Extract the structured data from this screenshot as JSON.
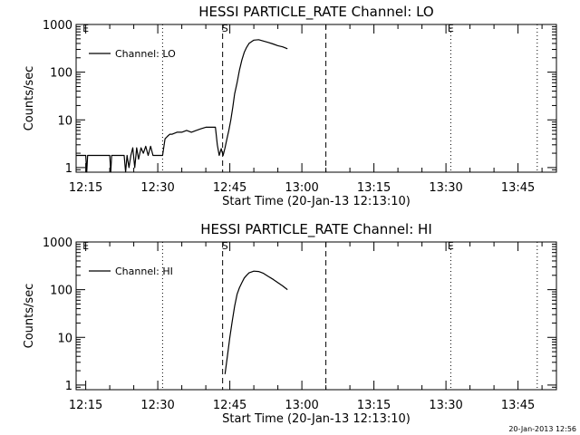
{
  "footer_timestamp": "20-Jan-2013 12:56",
  "chart_data": [
    {
      "type": "line",
      "title": "HESSI PARTICLE_RATE Channel: LO",
      "xlabel": "Start Time (20-Jan-13 12:13:10)",
      "ylabel": "Counts/sec",
      "yscale": "log",
      "xlim": [
        "12:13",
        "13:53"
      ],
      "ylim": [
        0.8,
        1000
      ],
      "xticks": [
        "12:15",
        "12:30",
        "12:45",
        "13:00",
        "13:15",
        "13:30",
        "13:45"
      ],
      "yticks": [
        "1",
        "10",
        "100",
        "1000"
      ],
      "legend": "top-left",
      "marker_labels": [
        {
          "text": "E",
          "x": "12:15"
        },
        {
          "text": "S",
          "x": "12:44"
        },
        {
          "text": "E",
          "x": "13:31"
        }
      ],
      "vlines": [
        {
          "x": "12:31",
          "style": "dotted"
        },
        {
          "x": "12:43.5",
          "style": "dashed"
        },
        {
          "x": "13:05",
          "style": "dashed"
        },
        {
          "x": "13:31",
          "style": "dotted"
        },
        {
          "x": "13:49",
          "style": "dotted"
        }
      ],
      "series": [
        {
          "name": "Channel: LO",
          "x": [
            "12:13",
            "12:15",
            "12:15.2",
            "12:15.4",
            "12:20",
            "12:20.2",
            "12:20.4",
            "12:22",
            "12:23",
            "12:23.3",
            "12:23.6",
            "12:24",
            "12:24.4",
            "12:24.8",
            "12:25.2",
            "12:25.6",
            "12:26",
            "12:26.5",
            "12:27",
            "12:27.5",
            "12:28",
            "12:28.5",
            "12:29",
            "12:29.5",
            "12:30",
            "12:30.5",
            "12:31",
            "12:31.5",
            "12:32",
            "12:32.5",
            "12:33",
            "12:34",
            "12:35",
            "12:36",
            "12:37",
            "12:38",
            "12:39",
            "12:40",
            "12:41",
            "12:42",
            "12:42.4",
            "12:42.8",
            "12:43.2",
            "12:43.6",
            "12:44",
            "12:44.4",
            "12:44.8",
            "12:45.2",
            "12:45.6",
            "12:46",
            "12:46.5",
            "12:47",
            "12:47.5",
            "12:48",
            "12:48.5",
            "12:49",
            "12:50",
            "12:51",
            "12:52",
            "12:53",
            "12:54",
            "12:55",
            "12:56",
            "12:57"
          ],
          "y": [
            1.8,
            1.8,
            0.8,
            1.8,
            1.8,
            0.8,
            1.8,
            1.8,
            1.8,
            0.8,
            1.8,
            1.0,
            1.8,
            2.6,
            1.0,
            2.6,
            1.5,
            2.6,
            2.0,
            2.8,
            1.8,
            2.8,
            1.8,
            1.8,
            1.8,
            1.8,
            1.8,
            4.0,
            4.5,
            5.0,
            5.0,
            5.5,
            5.5,
            6.0,
            5.5,
            6.0,
            6.5,
            7.0,
            7.0,
            7.0,
            3.0,
            1.8,
            2.5,
            1.8,
            2.6,
            4.0,
            6.0,
            10,
            18,
            35,
            60,
            110,
            180,
            260,
            330,
            400,
            470,
            480,
            450,
            420,
            390,
            360,
            340,
            310
          ]
        }
      ]
    },
    {
      "type": "line",
      "title": "HESSI PARTICLE_RATE Channel: HI",
      "xlabel": "Start Time (20-Jan-13 12:13:10)",
      "ylabel": "Counts/sec",
      "yscale": "log",
      "xlim": [
        "12:13",
        "13:53"
      ],
      "ylim": [
        0.8,
        1000
      ],
      "xticks": [
        "12:15",
        "12:30",
        "12:45",
        "13:00",
        "13:15",
        "13:30",
        "13:45"
      ],
      "yticks": [
        "1",
        "10",
        "100",
        "1000"
      ],
      "legend": "top-left",
      "marker_labels": [
        {
          "text": "E",
          "x": "12:15"
        },
        {
          "text": "S",
          "x": "12:44"
        },
        {
          "text": "E",
          "x": "13:31"
        }
      ],
      "vlines": [
        {
          "x": "12:31",
          "style": "dotted"
        },
        {
          "x": "12:43.5",
          "style": "dashed"
        },
        {
          "x": "13:05",
          "style": "dashed"
        },
        {
          "x": "13:31",
          "style": "dotted"
        },
        {
          "x": "13:49",
          "style": "dotted"
        }
      ],
      "series": [
        {
          "name": "Channel: HI",
          "x": [
            "12:44",
            "12:44.5",
            "12:45",
            "12:45.5",
            "12:46",
            "12:46.5",
            "12:47",
            "12:47.5",
            "12:48",
            "12:48.5",
            "12:49",
            "12:50",
            "12:51",
            "12:52",
            "12:53",
            "12:54",
            "12:55",
            "12:56",
            "12:57"
          ],
          "y": [
            1.7,
            4.0,
            10,
            22,
            45,
            80,
            110,
            140,
            175,
            200,
            225,
            245,
            240,
            220,
            190,
            165,
            140,
            120,
            100
          ]
        }
      ]
    }
  ]
}
